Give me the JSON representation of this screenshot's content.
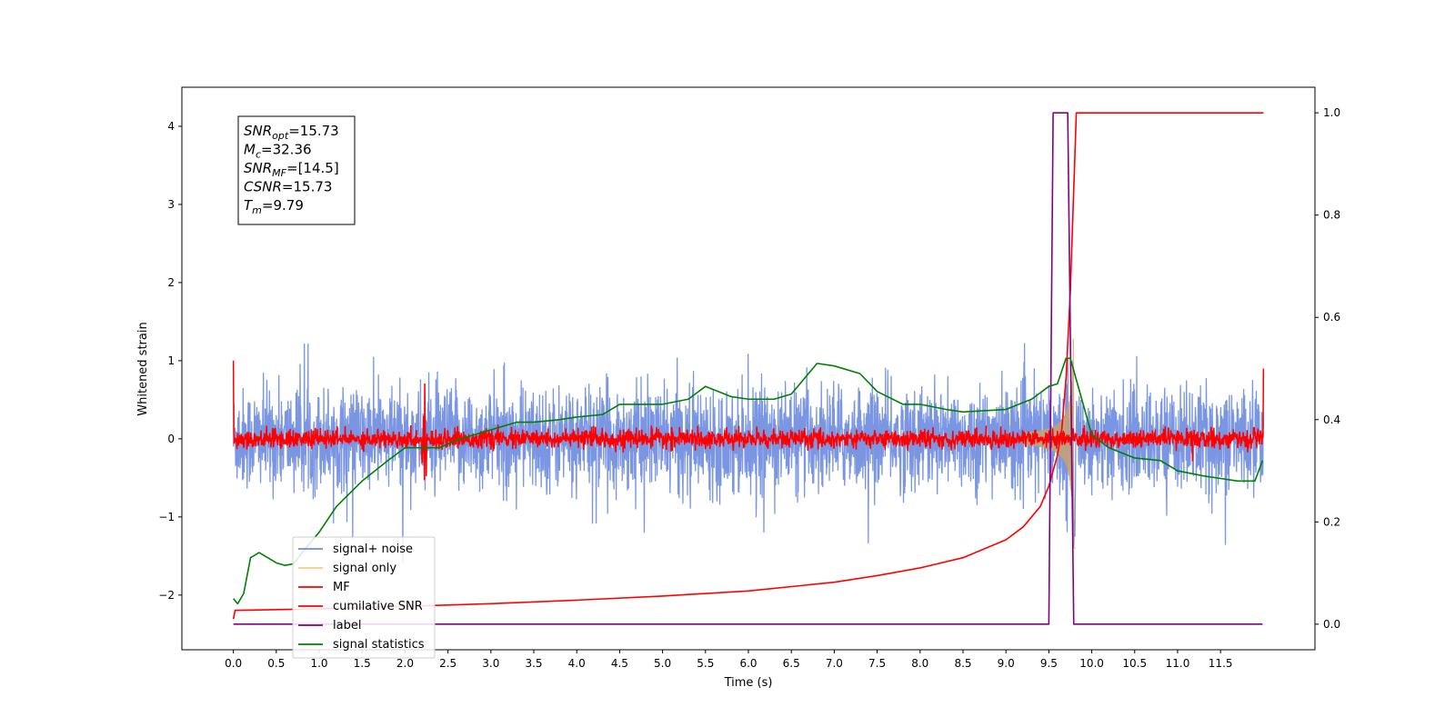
{
  "chart_data": {
    "type": "line",
    "xlabel": "Time (s)",
    "ylabel": "Whitened strain",
    "xlim": [
      -0.6,
      12.6
    ],
    "ylim": [
      -2.7,
      4.5
    ],
    "y2lim": [
      -0.05,
      1.05
    ],
    "xticks": [
      0.0,
      0.5,
      1.0,
      1.5,
      2.0,
      2.5,
      3.0,
      3.5,
      4.0,
      4.5,
      5.0,
      5.5,
      6.0,
      6.5,
      7.0,
      7.5,
      8.0,
      8.5,
      9.0,
      9.5,
      10.0,
      10.5,
      11.0,
      11.5
    ],
    "xtick_labels": [
      "0.0",
      "0.5",
      "1.0",
      "1.5",
      "2.0",
      "2.5",
      "3.0",
      "3.5",
      "4.0",
      "4.5",
      "5.0",
      "5.5",
      "6.0",
      "6.5",
      "7.0",
      "7.5",
      "8.0",
      "8.5",
      "9.0",
      "9.5",
      "10.0",
      "10.5",
      "11.0",
      "11.5"
    ],
    "yticks": [
      -2,
      -1,
      0,
      1,
      2,
      3,
      4
    ],
    "ytick_labels": [
      "−2",
      "−1",
      "0",
      "1",
      "2",
      "3",
      "4"
    ],
    "y2ticks": [
      0.0,
      0.2,
      0.4,
      0.6,
      0.8,
      1.0
    ],
    "y2tick_labels": [
      "0.0",
      "0.2",
      "0.4",
      "0.6",
      "0.8",
      "1.0"
    ],
    "legend_position": "lower-left",
    "annotation": [
      {
        "name": "SNR",
        "sub": "opt",
        "value": "=15.73"
      },
      {
        "name": "M",
        "sub": "c",
        "value": "=32.36"
      },
      {
        "name": "SNR",
        "sub": "MF",
        "value": "=[14.5]"
      },
      {
        "name": "CSNR",
        "sub": "",
        "value": "=15.73"
      },
      {
        "name": "T",
        "sub": "m",
        "value": "=9.79"
      }
    ],
    "series": [
      {
        "name": "signal+ noise",
        "axis": "left",
        "color": "#6b8be0",
        "kind": "noise",
        "std": 0.32,
        "range": [
          0,
          12
        ]
      },
      {
        "name": "signal only",
        "axis": "left",
        "color": "#f5cc80",
        "kind": "chirp",
        "merger_time": 9.79,
        "peak_amplitude": 1.6
      },
      {
        "name": "MF",
        "axis": "left",
        "color": "#ff0000",
        "kind": "noise",
        "std": 0.06,
        "range": [
          0,
          12
        ]
      },
      {
        "name": "cumilative SNR",
        "axis": "right",
        "color": "#ff0000",
        "x": [
          0.0,
          0.02,
          1.0,
          2.0,
          3.0,
          4.0,
          5.0,
          6.0,
          7.0,
          7.5,
          8.0,
          8.5,
          9.0,
          9.2,
          9.4,
          9.5,
          9.6,
          9.65,
          9.7,
          9.75,
          9.8,
          9.82,
          12.0
        ],
        "y": [
          0.01,
          0.027,
          0.03,
          0.035,
          0.04,
          0.047,
          0.055,
          0.065,
          0.082,
          0.095,
          0.11,
          0.13,
          0.165,
          0.19,
          0.23,
          0.27,
          0.33,
          0.38,
          0.48,
          0.65,
          0.9,
          1.0,
          1.0
        ]
      },
      {
        "name": "label",
        "axis": "right",
        "color": "#800080",
        "x": [
          0.0,
          9.5,
          9.55,
          9.72,
          9.79,
          11.99
        ],
        "y": [
          0.0,
          0.0,
          1.0,
          1.0,
          0.0,
          0.0
        ]
      },
      {
        "name": "signal statistics",
        "axis": "right",
        "color": "#008000",
        "x": [
          0.0,
          0.05,
          0.12,
          0.2,
          0.3,
          0.4,
          0.5,
          0.6,
          0.7,
          0.8,
          1.0,
          1.2,
          1.5,
          1.8,
          2.0,
          2.2,
          2.4,
          2.6,
          3.0,
          3.3,
          3.5,
          3.8,
          4.0,
          4.3,
          4.5,
          4.8,
          5.0,
          5.3,
          5.5,
          5.8,
          6.0,
          6.3,
          6.5,
          6.8,
          7.0,
          7.3,
          7.5,
          7.8,
          8.0,
          8.3,
          8.5,
          9.0,
          9.3,
          9.5,
          9.6,
          9.7,
          9.75,
          9.8,
          9.9,
          10.0,
          10.2,
          10.5,
          10.8,
          11.0,
          11.3,
          11.5,
          11.7,
          11.9,
          11.99
        ],
        "y": [
          0.05,
          0.04,
          0.06,
          0.13,
          0.14,
          0.13,
          0.12,
          0.115,
          0.118,
          0.14,
          0.18,
          0.23,
          0.28,
          0.32,
          0.345,
          0.345,
          0.345,
          0.36,
          0.38,
          0.395,
          0.395,
          0.4,
          0.405,
          0.41,
          0.43,
          0.43,
          0.43,
          0.44,
          0.465,
          0.445,
          0.44,
          0.44,
          0.45,
          0.51,
          0.505,
          0.49,
          0.455,
          0.43,
          0.43,
          0.42,
          0.415,
          0.42,
          0.44,
          0.465,
          0.47,
          0.52,
          0.52,
          0.49,
          0.43,
          0.37,
          0.345,
          0.325,
          0.32,
          0.3,
          0.29,
          0.285,
          0.28,
          0.28,
          0.32
        ]
      }
    ]
  }
}
